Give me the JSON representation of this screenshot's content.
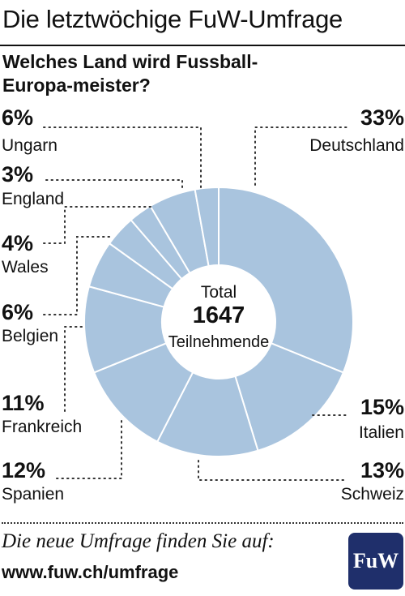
{
  "header": {
    "title": "Die letztwöchige FuW-Umfrage",
    "question": "Welches Land wird Fussball-Europa-meister?"
  },
  "chart_data": {
    "type": "donut",
    "slice_color": "#a9c4de",
    "slice_stroke": "#ffffff",
    "center": {
      "line1": "Total",
      "count": "1647",
      "line2": "Teilnehmende"
    },
    "slices": [
      {
        "label": "Deutschland",
        "value": 33,
        "pct_label": "33%"
      },
      {
        "label": "Italien",
        "value": 15,
        "pct_label": "15%"
      },
      {
        "label": "Schweiz",
        "value": 13,
        "pct_label": "13%"
      },
      {
        "label": "Spanien",
        "value": 12,
        "pct_label": "12%"
      },
      {
        "label": "Frankreich",
        "value": 11,
        "pct_label": "11%"
      },
      {
        "label": "Belgien",
        "value": 6,
        "pct_label": "6%"
      },
      {
        "label": "Wales",
        "value": 4,
        "pct_label": "4%"
      },
      {
        "label": "England",
        "value": 3,
        "pct_label": "3%"
      },
      {
        "label": "Ungarn",
        "value": 6,
        "pct_label": "6%"
      },
      {
        "label": "",
        "value": 3
      }
    ]
  },
  "footer": {
    "text": "Die neue Umfrage finden Sie auf:",
    "url": "www.fuw.ch/umfrage",
    "logo": "FuW",
    "logo_color": "#1f2f6b"
  }
}
